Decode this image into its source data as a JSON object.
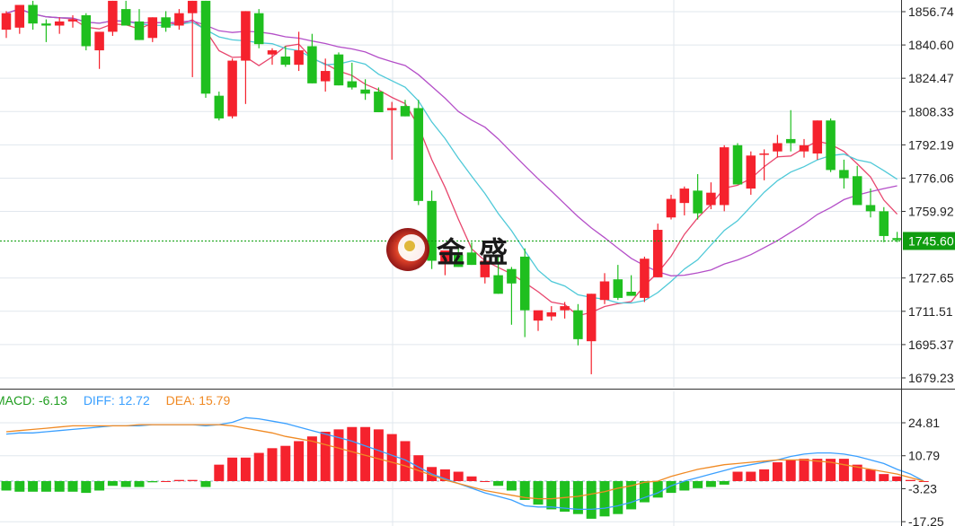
{
  "indicator_labels": {
    "macd_label": "MACD: -6.13",
    "diff_label": "DIFF: 12.72",
    "dea_label": "DEA: 15.79"
  },
  "watermark_text": "金 盛",
  "colors": {
    "up": "#f5222d",
    "down": "#1fbf1f",
    "ma_fast": "#e8476e",
    "ma_mid": "#4fc9d8",
    "ma_slow": "#b44fc8",
    "diff": "#3ba0ff",
    "dea": "#f08a24",
    "price_line": "#0a9d0a",
    "macd_text": "#1f9d1f",
    "grid": "#e1e7ee"
  },
  "chart_data": [
    {
      "type": "candlestick",
      "title": "",
      "y_ticks": [
        "1856.74",
        "1840.60",
        "1824.47",
        "1808.33",
        "1792.19",
        "1776.06",
        "1759.92",
        "1745.60",
        "1727.65",
        "1711.51",
        "1695.37",
        "1679.23"
      ],
      "ylim": [
        1673,
        1862
      ],
      "current_price": 1745.6,
      "current_price_label": "1745.60",
      "grid": true,
      "candles": [
        {
          "o": 1848,
          "h": 1857,
          "l": 1844,
          "c": 1856
        },
        {
          "o": 1849,
          "h": 1860,
          "l": 1846,
          "c": 1860
        },
        {
          "o": 1860,
          "h": 1862,
          "l": 1848,
          "c": 1851
        },
        {
          "o": 1851,
          "h": 1853,
          "l": 1842,
          "c": 1850
        },
        {
          "o": 1850,
          "h": 1854,
          "l": 1846,
          "c": 1852
        },
        {
          "o": 1852,
          "h": 1855,
          "l": 1849,
          "c": 1853
        },
        {
          "o": 1855,
          "h": 1856,
          "l": 1838,
          "c": 1840
        },
        {
          "o": 1838,
          "h": 1846,
          "l": 1829,
          "c": 1847
        },
        {
          "o": 1847,
          "h": 1862,
          "l": 1845,
          "c": 1862
        },
        {
          "o": 1858,
          "h": 1862,
          "l": 1850,
          "c": 1850
        },
        {
          "o": 1852,
          "h": 1858,
          "l": 1843,
          "c": 1843
        },
        {
          "o": 1844,
          "h": 1854,
          "l": 1842,
          "c": 1854
        },
        {
          "o": 1854,
          "h": 1857,
          "l": 1847,
          "c": 1849
        },
        {
          "o": 1850,
          "h": 1858,
          "l": 1848,
          "c": 1856
        },
        {
          "o": 1856,
          "h": 1862,
          "l": 1825,
          "c": 1862
        },
        {
          "o": 1862,
          "h": 1862,
          "l": 1815,
          "c": 1817
        },
        {
          "o": 1816,
          "h": 1818,
          "l": 1804,
          "c": 1805
        },
        {
          "o": 1806,
          "h": 1834,
          "l": 1805,
          "c": 1833
        },
        {
          "o": 1833,
          "h": 1857,
          "l": 1812,
          "c": 1857
        },
        {
          "o": 1856,
          "h": 1858,
          "l": 1839,
          "c": 1841
        },
        {
          "o": 1836,
          "h": 1839,
          "l": 1831,
          "c": 1838
        },
        {
          "o": 1835,
          "h": 1840,
          "l": 1830,
          "c": 1831
        },
        {
          "o": 1831,
          "h": 1847,
          "l": 1828,
          "c": 1838
        },
        {
          "o": 1840,
          "h": 1846,
          "l": 1822,
          "c": 1822
        },
        {
          "o": 1823,
          "h": 1834,
          "l": 1818,
          "c": 1828
        },
        {
          "o": 1836,
          "h": 1837,
          "l": 1821,
          "c": 1821
        },
        {
          "o": 1823,
          "h": 1832,
          "l": 1819,
          "c": 1820
        },
        {
          "o": 1819,
          "h": 1824,
          "l": 1814,
          "c": 1817
        },
        {
          "o": 1818,
          "h": 1820,
          "l": 1808,
          "c": 1808
        },
        {
          "o": 1809,
          "h": 1813,
          "l": 1785,
          "c": 1810
        },
        {
          "o": 1811,
          "h": 1814,
          "l": 1806,
          "c": 1806
        },
        {
          "o": 1810,
          "h": 1814,
          "l": 1763,
          "c": 1765
        },
        {
          "o": 1765,
          "h": 1770,
          "l": 1732,
          "c": 1736
        },
        {
          "o": 1735,
          "h": 1741,
          "l": 1729,
          "c": 1741
        },
        {
          "o": 1739,
          "h": 1744,
          "l": 1733,
          "c": 1733
        },
        {
          "o": 1740,
          "h": 1745,
          "l": 1734,
          "c": 1734
        },
        {
          "o": 1728,
          "h": 1738,
          "l": 1725,
          "c": 1736
        },
        {
          "o": 1729,
          "h": 1738,
          "l": 1720,
          "c": 1720
        },
        {
          "o": 1732,
          "h": 1733,
          "l": 1705,
          "c": 1725
        },
        {
          "o": 1738,
          "h": 1742,
          "l": 1699,
          "c": 1712
        },
        {
          "o": 1707,
          "h": 1711,
          "l": 1702,
          "c": 1712
        },
        {
          "o": 1709,
          "h": 1714,
          "l": 1707,
          "c": 1711
        },
        {
          "o": 1712,
          "h": 1716,
          "l": 1708,
          "c": 1714
        },
        {
          "o": 1712,
          "h": 1715,
          "l": 1695,
          "c": 1698
        },
        {
          "o": 1697,
          "h": 1720,
          "l": 1681,
          "c": 1720
        },
        {
          "o": 1717,
          "h": 1730,
          "l": 1715,
          "c": 1726
        },
        {
          "o": 1727,
          "h": 1734,
          "l": 1717,
          "c": 1718
        },
        {
          "o": 1721,
          "h": 1729,
          "l": 1719,
          "c": 1719
        },
        {
          "o": 1718,
          "h": 1738,
          "l": 1716,
          "c": 1737
        },
        {
          "o": 1728,
          "h": 1754,
          "l": 1728,
          "c": 1751
        },
        {
          "o": 1757,
          "h": 1768,
          "l": 1756,
          "c": 1766
        },
        {
          "o": 1764,
          "h": 1772,
          "l": 1758,
          "c": 1771
        },
        {
          "o": 1770,
          "h": 1778,
          "l": 1756,
          "c": 1759
        },
        {
          "o": 1763,
          "h": 1774,
          "l": 1761,
          "c": 1769
        },
        {
          "o": 1763,
          "h": 1792,
          "l": 1760,
          "c": 1791
        },
        {
          "o": 1792,
          "h": 1793,
          "l": 1773,
          "c": 1773
        },
        {
          "o": 1771,
          "h": 1789,
          "l": 1768,
          "c": 1787
        },
        {
          "o": 1788,
          "h": 1790,
          "l": 1775,
          "c": 1788
        },
        {
          "o": 1789,
          "h": 1797,
          "l": 1786,
          "c": 1793
        },
        {
          "o": 1795,
          "h": 1809,
          "l": 1789,
          "c": 1793
        },
        {
          "o": 1789,
          "h": 1795,
          "l": 1786,
          "c": 1792
        },
        {
          "o": 1788,
          "h": 1804,
          "l": 1785,
          "c": 1804
        },
        {
          "o": 1804,
          "h": 1805,
          "l": 1779,
          "c": 1780
        },
        {
          "o": 1780,
          "h": 1785,
          "l": 1771,
          "c": 1776
        },
        {
          "o": 1777,
          "h": 1782,
          "l": 1763,
          "c": 1763
        },
        {
          "o": 1763,
          "h": 1771,
          "l": 1757,
          "c": 1760
        },
        {
          "o": 1760,
          "h": 1762,
          "l": 1745,
          "c": 1748
        },
        {
          "o": 1747,
          "h": 1750,
          "l": 1745,
          "c": 1746
        }
      ]
    },
    {
      "type": "bar",
      "title": "",
      "y_ticks": [
        "24.81",
        "10.79",
        "-3.23",
        "-17.25"
      ],
      "ylim": [
        -17.25,
        28
      ],
      "series": [
        {
          "name": "MACD",
          "values": [
            -4,
            -4.5,
            -4.5,
            -4.5,
            -4.5,
            -4.5,
            -5,
            -4,
            -2,
            -2.5,
            -2.5,
            -0.5,
            0,
            0.5,
            0.5,
            -2.5,
            7,
            10,
            10,
            12,
            14,
            15,
            17,
            19,
            21,
            22,
            23,
            23,
            22,
            20,
            17,
            11,
            6,
            5,
            4,
            2,
            0,
            -2,
            -4,
            -8,
            -10,
            -12,
            -13,
            -14,
            -16,
            -15,
            -14,
            -12,
            -9,
            -7,
            -5,
            -4,
            -3,
            -2.5,
            -1.5,
            4,
            4,
            5,
            8,
            9,
            9.5,
            9.5,
            9.5,
            9.5,
            7,
            5,
            3,
            2,
            0.5,
            0
          ]
        },
        {
          "name": "DIFF",
          "values": [
            20,
            20.5,
            20.5,
            21,
            21.5,
            22,
            22.5,
            23,
            23.5,
            23.5,
            23.5,
            24,
            24,
            24,
            24,
            23.5,
            24,
            25,
            27,
            26.5,
            25.5,
            24.5,
            23,
            21.5,
            20,
            18.5,
            17,
            15,
            13,
            11,
            9,
            6,
            3,
            1,
            -1,
            -3,
            -5,
            -6.5,
            -8,
            -10.5,
            -11,
            -11,
            -11.5,
            -12,
            -12,
            -11.5,
            -10.5,
            -9,
            -7,
            -5,
            -2,
            0,
            1.5,
            3,
            4.5,
            6,
            7,
            8,
            9,
            10.5,
            11.5,
            12,
            12,
            11.5,
            10.5,
            9,
            7.5,
            5,
            3,
            0
          ]
        },
        {
          "name": "DEA",
          "values": [
            21,
            21.5,
            22,
            22.5,
            23,
            23.5,
            23.5,
            23.5,
            23.5,
            23.5,
            24,
            24,
            24,
            24,
            24,
            24,
            24,
            23.5,
            22.5,
            21.5,
            20.5,
            19,
            18,
            17,
            15.5,
            14,
            12.5,
            11,
            9.5,
            8,
            6.5,
            4.5,
            2.5,
            0.5,
            -1,
            -2.5,
            -4,
            -5,
            -6,
            -7,
            -7.5,
            -7.5,
            -7,
            -6.5,
            -5.5,
            -4.5,
            -3,
            -2,
            -0.5,
            0,
            2,
            3.5,
            5,
            6,
            7,
            7.5,
            8,
            8.5,
            9,
            9,
            9,
            8.5,
            8,
            7,
            6,
            5,
            4,
            3,
            1.5,
            0
          ]
        }
      ]
    }
  ]
}
